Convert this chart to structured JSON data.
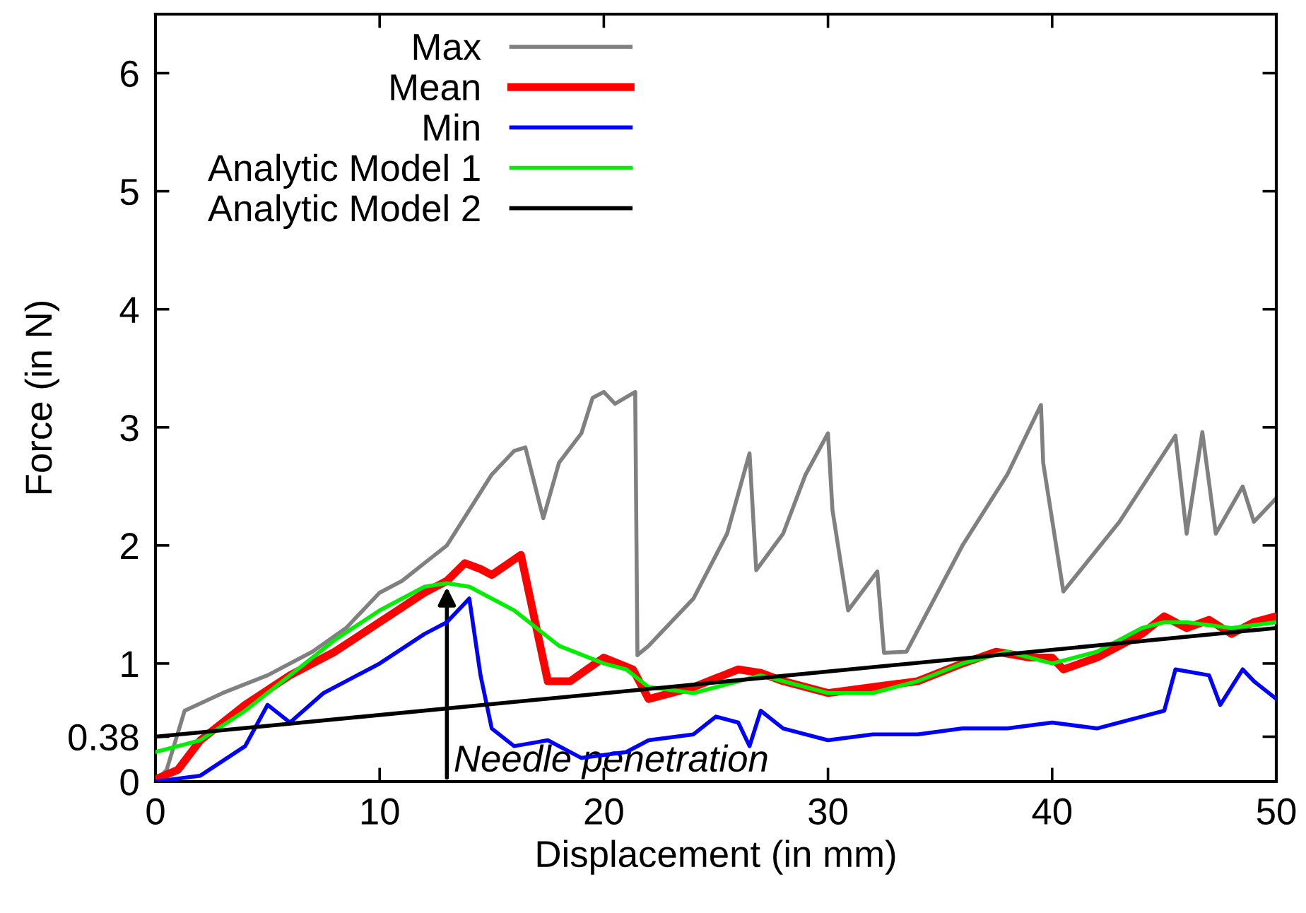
{
  "chart_data": {
    "type": "line",
    "xlabel": "Displacement (in mm)",
    "ylabel": "Force (in N)",
    "xlim": [
      0,
      50
    ],
    "ylim": [
      0,
      6.5
    ],
    "xticks": [
      0,
      10,
      20,
      30,
      40,
      50
    ],
    "yticks": [
      0,
      0.38,
      1,
      2,
      3,
      4,
      5,
      6
    ],
    "grid": false,
    "legend": "top left",
    "marker": "none",
    "line_style": "solid",
    "annotations": [
      {
        "text": "Needle penetration",
        "x": 13,
        "y": 1.68
      }
    ],
    "series": [
      {
        "name": "Max",
        "color": "#808080",
        "x": [
          0,
          0.5,
          1.3,
          3,
          5,
          7,
          8.5,
          10,
          11,
          12,
          13,
          14,
          15,
          16,
          16.5,
          17.3,
          18,
          19,
          19.5,
          20,
          20.5,
          21.4,
          21.5,
          22,
          24,
          25.5,
          26.5,
          26.8,
          28,
          29,
          30,
          30.2,
          30.9,
          32.2,
          32.5,
          33.5,
          36,
          38,
          39.5,
          39.6,
          40.5,
          43,
          45.5,
          46,
          46.7,
          47.3,
          48.5,
          49,
          50
        ],
        "values": [
          0,
          0.1,
          0.6,
          0.75,
          0.9,
          1.1,
          1.3,
          1.6,
          1.7,
          1.85,
          2.0,
          2.3,
          2.6,
          2.8,
          2.83,
          2.23,
          2.7,
          2.95,
          3.25,
          3.3,
          3.2,
          3.3,
          1.07,
          1.15,
          1.55,
          2.1,
          2.78,
          1.79,
          2.1,
          2.6,
          2.95,
          2.3,
          1.45,
          1.78,
          1.09,
          1.1,
          2.0,
          2.6,
          3.19,
          2.7,
          1.61,
          2.2,
          2.93,
          2.1,
          2.96,
          2.1,
          2.5,
          2.2,
          2.4
        ]
      },
      {
        "name": "Mean",
        "color": "#ff0000",
        "x": [
          0,
          1,
          2,
          4,
          6,
          8,
          10,
          12,
          13,
          13.8,
          14.5,
          15,
          16.3,
          17.5,
          18.5,
          20,
          21.3,
          22,
          24,
          26,
          27,
          28,
          30,
          32,
          34,
          36,
          37.5,
          39,
          40,
          40.5,
          42,
          44,
          45,
          46,
          47,
          48,
          49,
          50
        ],
        "values": [
          0.02,
          0.1,
          0.35,
          0.65,
          0.9,
          1.1,
          1.35,
          1.6,
          1.7,
          1.85,
          1.8,
          1.75,
          1.92,
          0.85,
          0.85,
          1.05,
          0.95,
          0.7,
          0.8,
          0.95,
          0.92,
          0.85,
          0.75,
          0.8,
          0.85,
          1.0,
          1.1,
          1.05,
          1.05,
          0.95,
          1.05,
          1.25,
          1.4,
          1.3,
          1.37,
          1.25,
          1.35,
          1.4
        ]
      },
      {
        "name": "Min",
        "color": "#0000ff",
        "x": [
          0,
          2,
          4,
          5,
          6,
          7.5,
          9,
          10,
          12,
          13,
          14,
          14.5,
          15,
          16,
          17.5,
          19,
          21,
          22,
          24,
          25,
          26,
          26.5,
          27,
          28,
          30,
          32,
          34,
          36,
          38,
          40,
          42,
          44,
          45,
          45.5,
          47,
          47.5,
          48.5,
          49,
          50
        ],
        "values": [
          0,
          0.05,
          0.3,
          0.65,
          0.5,
          0.75,
          0.9,
          1.0,
          1.25,
          1.35,
          1.55,
          0.9,
          0.45,
          0.3,
          0.35,
          0.2,
          0.25,
          0.35,
          0.4,
          0.55,
          0.5,
          0.3,
          0.6,
          0.45,
          0.35,
          0.4,
          0.4,
          0.45,
          0.45,
          0.5,
          0.45,
          0.55,
          0.6,
          0.95,
          0.9,
          0.65,
          0.95,
          0.85,
          0.7
        ]
      },
      {
        "name": "Analytic Model 1",
        "color": "#00ee00",
        "x": [
          0,
          2,
          4,
          6,
          8,
          10,
          12,
          13,
          14,
          16,
          18,
          20,
          21,
          22,
          24,
          26,
          27,
          28,
          30,
          32,
          34,
          36,
          38,
          40,
          42,
          44,
          45,
          46,
          48,
          50
        ],
        "values": [
          0.25,
          0.35,
          0.6,
          0.9,
          1.2,
          1.45,
          1.65,
          1.68,
          1.65,
          1.45,
          1.15,
          1.0,
          0.95,
          0.8,
          0.75,
          0.85,
          0.9,
          0.85,
          0.75,
          0.75,
          0.85,
          1.0,
          1.1,
          1.0,
          1.1,
          1.3,
          1.35,
          1.35,
          1.3,
          1.35
        ]
      },
      {
        "name": "Analytic Model 2",
        "color": "#000000",
        "x": [
          0,
          50
        ],
        "values": [
          0.38,
          1.3
        ]
      }
    ]
  }
}
